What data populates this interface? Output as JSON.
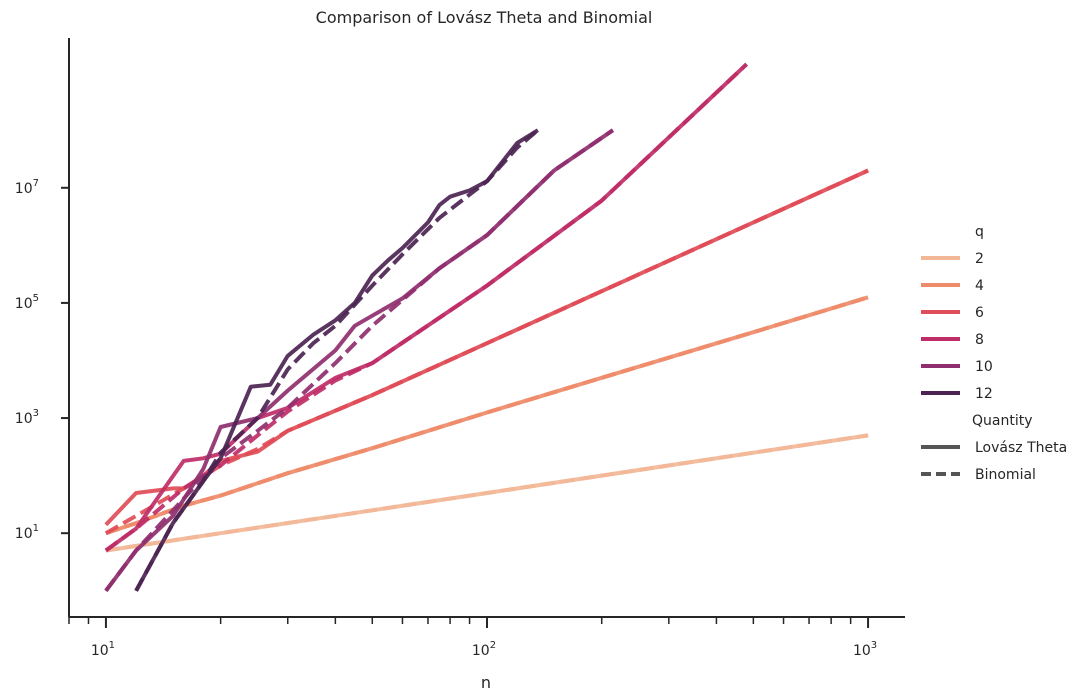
{
  "chart_data": {
    "type": "line",
    "title": "Comparison of Lovász Theta and Binomial",
    "xlabel": "n",
    "ylabel": "",
    "xscale": "log",
    "yscale": "log",
    "xlim": [
      8,
      1250
    ],
    "ylim": [
      0.35,
      4000000000
    ],
    "grid": false,
    "x_ticks": [
      {
        "value": 10,
        "base": "10",
        "exp": "1"
      },
      {
        "value": 100,
        "base": "10",
        "exp": "2"
      },
      {
        "value": 1000,
        "base": "10",
        "exp": "3"
      }
    ],
    "y_ticks": [
      {
        "value": 10,
        "base": "10",
        "exp": "1"
      },
      {
        "value": 1000,
        "base": "10",
        "exp": "3"
      },
      {
        "value": 100000,
        "base": "10",
        "exp": "5"
      },
      {
        "value": 10000000,
        "base": "10",
        "exp": "7"
      }
    ],
    "legend": {
      "placement": "right",
      "hue_title": "q",
      "style_title": "Quantity",
      "hue_entries": [
        {
          "label": "2",
          "color": "#f2b797"
        },
        {
          "label": "4",
          "color": "#ee8b6a"
        },
        {
          "label": "6",
          "color": "#e04c57"
        },
        {
          "label": "8",
          "color": "#bf2c67"
        },
        {
          "label": "10",
          "color": "#8f2f6f"
        },
        {
          "label": "12",
          "color": "#4b2452"
        }
      ],
      "style_entries": [
        {
          "label": "Lovász Theta",
          "dash": "solid"
        },
        {
          "label": "Binomial",
          "dash": "dashed"
        }
      ]
    },
    "series": [
      {
        "q": "2",
        "quantity": "Lovász Theta",
        "color": "#f2b797",
        "dash": "solid",
        "x": [
          10,
          20,
          50,
          100,
          200,
          500,
          1000
        ],
        "y": [
          5,
          10,
          25,
          50,
          100,
          250,
          500
        ]
      },
      {
        "q": "2",
        "quantity": "Binomial",
        "color": "#f2b797",
        "dash": "dashed",
        "x": [
          10,
          20,
          50,
          100,
          200,
          500,
          1000
        ],
        "y": [
          5,
          10,
          25,
          50,
          100,
          250,
          500
        ]
      },
      {
        "q": "4",
        "quantity": "Lovász Theta",
        "color": "#ee8b6a",
        "dash": "solid",
        "x": [
          10,
          12,
          16,
          20,
          30,
          50,
          100,
          200,
          500,
          1000
        ],
        "y": [
          10,
          15,
          30,
          45,
          110,
          300,
          1250,
          5000,
          31000,
          125000
        ]
      },
      {
        "q": "4",
        "quantity": "Binomial",
        "color": "#ee8b6a",
        "dash": "dashed",
        "x": [
          10,
          12,
          16,
          20,
          30,
          50,
          100,
          200,
          500,
          1000
        ],
        "y": [
          10,
          15,
          30,
          45,
          110,
          300,
          1250,
          5000,
          31000,
          125000
        ]
      },
      {
        "q": "6",
        "quantity": "Lovász Theta",
        "color": "#e04c57",
        "dash": "solid",
        "x": [
          10,
          12,
          15,
          16,
          18,
          20,
          25,
          30,
          50,
          100,
          200,
          500,
          1000
        ],
        "y": [
          14,
          50,
          60,
          60,
          100,
          180,
          260,
          600,
          2500,
          20000,
          160000,
          2500000,
          20000000
        ]
      },
      {
        "q": "6",
        "quantity": "Binomial",
        "color": "#e04c57",
        "dash": "dashed",
        "x": [
          10,
          12,
          16,
          20,
          25,
          30,
          50,
          100,
          200,
          500,
          1000
        ],
        "y": [
          10,
          20,
          60,
          150,
          290,
          600,
          2500,
          20000,
          160000,
          2500000,
          20000000
        ]
      },
      {
        "q": "8",
        "quantity": "Lovász Theta",
        "color": "#bf2c67",
        "dash": "solid",
        "x": [
          10,
          12,
          16,
          18,
          20,
          25,
          30,
          40,
          50,
          100,
          200,
          480
        ],
        "y": [
          5,
          12,
          180,
          200,
          240,
          1000,
          1500,
          5000,
          9000,
          200000,
          6000000,
          1400000000
        ]
      },
      {
        "q": "8",
        "quantity": "Binomial",
        "color": "#bf2c67",
        "dash": "dashed",
        "x": [
          10,
          12,
          16,
          20,
          25,
          30,
          40,
          50,
          100,
          200,
          480
        ],
        "y": [
          5,
          12,
          60,
          150,
          500,
          1300,
          4500,
          9000,
          200000,
          6000000,
          1400000000
        ]
      },
      {
        "q": "10",
        "quantity": "Lovász Theta",
        "color": "#8f2f6f",
        "dash": "solid",
        "x": [
          10,
          12,
          15,
          18,
          20,
          25,
          30,
          40,
          45,
          50,
          60,
          75,
          100,
          150,
          214
        ],
        "y": [
          1,
          5,
          20,
          130,
          700,
          1000,
          3000,
          15000,
          40000,
          60000,
          120000,
          400000,
          1500000,
          20000000,
          100000000
        ]
      },
      {
        "q": "10",
        "quantity": "Binomial",
        "color": "#8f2f6f",
        "dash": "dashed",
        "x": [
          10,
          12,
          15,
          20,
          25,
          30,
          40,
          50,
          75,
          100,
          150,
          214
        ],
        "y": [
          1,
          5,
          25,
          200,
          600,
          1500,
          9000,
          40000,
          400000,
          1500000,
          20000000,
          100000000
        ]
      },
      {
        "q": "12",
        "quantity": "Lovász Theta",
        "color": "#4b2452",
        "dash": "solid",
        "x": [
          12,
          15,
          18,
          20,
          24,
          27,
          30,
          35,
          40,
          45,
          50,
          55,
          60,
          70,
          75,
          80,
          90,
          100,
          120,
          136
        ],
        "y": [
          1,
          15,
          80,
          200,
          3500,
          3800,
          12000,
          28000,
          50000,
          100000,
          300000,
          550000,
          900000,
          2500000,
          5000000,
          7000000,
          9000000,
          13000000,
          60000000,
          100000000
        ]
      },
      {
        "q": "12",
        "quantity": "Binomial",
        "color": "#4b2452",
        "dash": "dashed",
        "x": [
          12,
          15,
          18,
          20,
          25,
          30,
          35,
          40,
          50,
          60,
          75,
          100,
          120,
          136
        ],
        "y": [
          1,
          15,
          80,
          250,
          1000,
          7000,
          20000,
          40000,
          200000,
          700000,
          3000000,
          13000000,
          50000000,
          100000000
        ]
      }
    ]
  }
}
